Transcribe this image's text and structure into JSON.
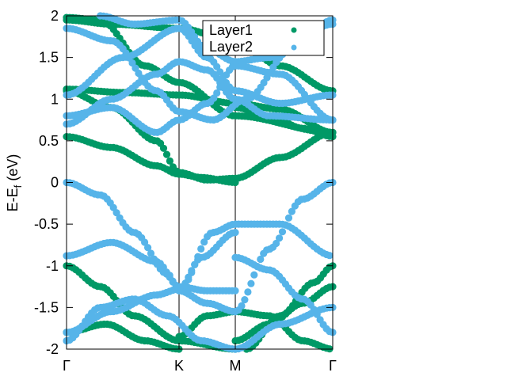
{
  "chart_data": {
    "type": "scatter",
    "ylabel_main": "E-E",
    "ylabel_sub": "f",
    "ylabel_unit": " (eV)",
    "ylim": [
      -2,
      2
    ],
    "yticks": [
      -2,
      -1.5,
      -1,
      -0.5,
      0,
      0.5,
      1,
      1.5,
      2
    ],
    "ytick_labels": [
      "-2",
      "-1.5",
      "-1",
      "-0.5",
      "0",
      "0.5",
      "1",
      "1.5",
      "2"
    ],
    "kpath": [
      {
        "label": "Γ",
        "pos": 0
      },
      {
        "label": "K",
        "pos": 1
      },
      {
        "label": "M",
        "pos": 1.5
      },
      {
        "label": "Γ",
        "pos": 2.366
      }
    ],
    "legend_position": "top-right",
    "series": [
      {
        "name": "Layer1",
        "color": "#009966",
        "bands": [
          {
            "k": [
              0,
              0.4,
              0.8,
              1,
              1.2,
              1.5
            ],
            "e": [
              0.55,
              0.42,
              0.2,
              0.1,
              0.06,
              0.0
            ]
          },
          {
            "k": [
              0,
              0.4,
              0.8,
              1,
              1.25,
              1.5,
              1.9,
              2.366
            ],
            "e": [
              1.1,
              0.9,
              0.5,
              0.12,
              0.03,
              0.05,
              0.3,
              0.6
            ]
          },
          {
            "k": [
              0,
              0.5,
              1,
              1.5,
              1.9,
              2.366
            ],
            "e": [
              1.12,
              1.08,
              1.05,
              0.95,
              0.88,
              0.6
            ]
          },
          {
            "k": [
              0,
              0.4,
              1,
              1.5,
              1.9,
              2.366
            ],
            "e": [
              1.95,
              1.9,
              1.85,
              1.7,
              1.4,
              1.1
            ]
          },
          {
            "k": [
              0,
              0.3,
              0.7,
              1,
              1.5,
              2.366
            ],
            "e": [
              1.98,
              1.95,
              1.4,
              1.2,
              0.8,
              0.6
            ]
          },
          {
            "k": [
              1.5,
              1.8,
              2.1,
              2.366
            ],
            "e": [
              0.9,
              0.8,
              0.65,
              0.55
            ]
          },
          {
            "k": [
              0,
              0.3,
              0.6,
              1,
              1.5
            ],
            "e": [
              -1.0,
              -1.25,
              -1.6,
              -1.9,
              -2.0
            ]
          },
          {
            "k": [
              0,
              0.35,
              0.7,
              1
            ],
            "e": [
              -1.8,
              -1.7,
              -1.9,
              -2.0
            ]
          },
          {
            "k": [
              1,
              1.25,
              1.5,
              1.8,
              2.1,
              2.366
            ],
            "e": [
              -1.85,
              -1.6,
              -1.55,
              -1.6,
              -1.9,
              -2.0
            ]
          },
          {
            "k": [
              1.6,
              1.9,
              2.2,
              2.366
            ],
            "e": [
              -2.0,
              -1.6,
              -1.2,
              -1.0
            ]
          },
          {
            "k": [
              1.5,
              1.8,
              2.1,
              2.366
            ],
            "e": [
              -1.9,
              -1.7,
              -1.45,
              -1.25
            ]
          }
        ]
      },
      {
        "name": "Layer2",
        "color": "#56b4e9",
        "bands": [
          {
            "k": [
              0,
              0.3,
              0.6,
              0.9,
              1,
              1.25,
              1.5
            ],
            "e": [
              0.0,
              -0.15,
              -0.6,
              -1.1,
              -1.3,
              -1.45,
              -1.55
            ]
          },
          {
            "k": [
              0,
              0.4,
              0.8,
              1,
              1.25,
              1.5
            ],
            "e": [
              -0.88,
              -0.72,
              -0.95,
              -1.25,
              -1.3,
              -1.3
            ]
          },
          {
            "k": [
              0,
              0.4,
              0.8,
              1,
              1.2,
              1.5
            ],
            "e": [
              -1.8,
              -1.55,
              -1.35,
              -1.28,
              -0.9,
              -0.6
            ]
          },
          {
            "k": [
              1,
              1.3,
              1.5,
              1.9,
              2.366
            ],
            "e": [
              -1.3,
              -0.6,
              -0.5,
              -0.5,
              -0.88
            ]
          },
          {
            "k": [
              1.5,
              1.8,
              2.1,
              2.366
            ],
            "e": [
              -1.55,
              -0.8,
              -0.2,
              0.0
            ]
          },
          {
            "k": [
              1.5,
              1.8,
              2.1,
              2.366
            ],
            "e": [
              -0.9,
              -1.05,
              -1.4,
              -1.8
            ]
          },
          {
            "k": [
              0,
              0.3,
              0.6,
              0.9,
              1.2,
              1.5
            ],
            "e": [
              -1.9,
              -1.5,
              -1.4,
              -1.6,
              -1.9,
              -2.0
            ]
          },
          {
            "k": [
              1.5,
              1.9,
              2.366
            ],
            "e": [
              -2.0,
              -1.7,
              -1.5
            ]
          },
          {
            "k": [
              0,
              0.4,
              0.8,
              1,
              1.25,
              1.5,
              1.8,
              2.366
            ],
            "e": [
              0.7,
              1.0,
              1.3,
              1.45,
              1.35,
              1.0,
              0.8,
              0.75
            ]
          },
          {
            "k": [
              0,
              0.4,
              0.8,
              1,
              1.25,
              1.5,
              1.9,
              2.366
            ],
            "e": [
              0.8,
              0.9,
              0.6,
              0.75,
              0.95,
              1.4,
              1.3,
              0.75
            ]
          },
          {
            "k": [
              0,
              0.5,
              1,
              1.25,
              1.5,
              1.9,
              2.366
            ],
            "e": [
              1.05,
              1.5,
              1.85,
              1.5,
              1.1,
              0.95,
              1.05
            ]
          },
          {
            "k": [
              0,
              0.4,
              0.8,
              1,
              1.3,
              1.6,
              2.0,
              2.366
            ],
            "e": [
              1.85,
              1.7,
              1.1,
              0.85,
              0.75,
              1.0,
              1.6,
              1.95
            ]
          },
          {
            "k": [
              0.3,
              0.6,
              1,
              1.25,
              1.5,
              1.8,
              2.366
            ],
            "e": [
              2.0,
              1.9,
              1.95,
              1.6,
              1.45,
              1.5,
              1.9
            ]
          }
        ]
      }
    ]
  }
}
